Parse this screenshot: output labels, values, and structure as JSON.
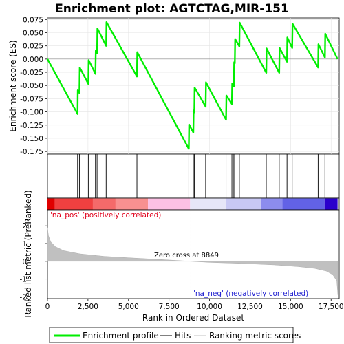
{
  "chart_data": {
    "type": "line",
    "title": "Enrichment plot: AGTCTAG,MIR-151",
    "top_panel": {
      "ylabel": "Enrichment score (ES)",
      "ylim": [
        -0.18,
        0.078
      ],
      "yticks": [
        0.075,
        0.05,
        0.025,
        0.0,
        -0.025,
        -0.05,
        -0.075,
        -0.1,
        -0.125,
        -0.15,
        -0.175
      ],
      "ytick_labels": [
        "0.075",
        "0.050",
        "0.025",
        "0.000",
        "-0.025",
        "-0.050",
        "-0.075",
        "-0.100",
        "-0.125",
        "-0.150",
        "-0.175"
      ],
      "series_name": "Enrichment profile",
      "line_color": "#00ee00",
      "es_points": [
        [
          0,
          0.0
        ],
        [
          1858,
          -0.104
        ],
        [
          1870,
          -0.059
        ],
        [
          1970,
          -0.064
        ],
        [
          1990,
          -0.016
        ],
        [
          2520,
          -0.047
        ],
        [
          2540,
          -0.002
        ],
        [
          2960,
          -0.028
        ],
        [
          2980,
          0.016
        ],
        [
          3060,
          0.011
        ],
        [
          3080,
          0.058
        ],
        [
          3620,
          0.025
        ],
        [
          3640,
          0.07
        ],
        [
          5520,
          -0.033
        ],
        [
          5540,
          0.013
        ],
        [
          8720,
          -0.17
        ],
        [
          8740,
          -0.124
        ],
        [
          9000,
          -0.139
        ],
        [
          9020,
          -0.097
        ],
        [
          9060,
          -0.101
        ],
        [
          9080,
          -0.054
        ],
        [
          9760,
          -0.09
        ],
        [
          9780,
          -0.044
        ],
        [
          11020,
          -0.115
        ],
        [
          11040,
          -0.069
        ],
        [
          11380,
          -0.085
        ],
        [
          11400,
          -0.046
        ],
        [
          11500,
          -0.052
        ],
        [
          11520,
          -0.006
        ],
        [
          11560,
          -0.008
        ],
        [
          11580,
          0.038
        ],
        [
          11840,
          0.024
        ],
        [
          11860,
          0.069
        ],
        [
          13500,
          -0.026
        ],
        [
          13520,
          0.02
        ],
        [
          14300,
          -0.026
        ],
        [
          14320,
          0.021
        ],
        [
          14780,
          -0.005
        ],
        [
          14800,
          0.041
        ],
        [
          15100,
          0.021
        ],
        [
          15120,
          0.067
        ],
        [
          16700,
          -0.016
        ],
        [
          16720,
          0.028
        ],
        [
          17120,
          0.003
        ],
        [
          17140,
          0.048
        ],
        [
          17900,
          0.0
        ]
      ]
    },
    "hits": {
      "series_name": "Hits",
      "positions": [
        1858,
        1970,
        2520,
        2960,
        3060,
        3620,
        5520,
        8720,
        9000,
        9060,
        9760,
        11020,
        11380,
        11500,
        11560,
        11840,
        13500,
        14300,
        14780,
        15100,
        16700,
        17120
      ]
    },
    "ranking_panel": {
      "series_name": "Ranking metric scores",
      "ylabel": "Ranked list metric (PreRanked)",
      "ylim": [
        -2.1,
        2.9
      ],
      "yticks": [
        2,
        1,
        0,
        -1,
        -2
      ],
      "ytick_labels": [
        "2",
        "1",
        "0",
        "-1",
        "-2"
      ],
      "zero_cross": 8849,
      "zero_cross_label": "Zero cross at 8849",
      "pos_label": "'na_pos' (positively correlated)",
      "neg_label": "'na_neg' (negatively correlated)",
      "metric_points": [
        [
          0,
          1.9
        ],
        [
          60,
          1.45
        ],
        [
          200,
          1.1
        ],
        [
          500,
          0.82
        ],
        [
          1000,
          0.6
        ],
        [
          2000,
          0.42
        ],
        [
          3500,
          0.28
        ],
        [
          5000,
          0.2
        ],
        [
          7000,
          0.1
        ],
        [
          8849,
          0.0
        ],
        [
          10000,
          -0.06
        ],
        [
          12000,
          -0.12
        ],
        [
          14000,
          -0.2
        ],
        [
          15500,
          -0.3
        ],
        [
          16500,
          -0.4
        ],
        [
          17200,
          -0.55
        ],
        [
          17600,
          -0.75
        ],
        [
          17850,
          -1.1
        ],
        [
          17920,
          -1.9
        ]
      ]
    },
    "xaxis": {
      "xlabel": "Rank in Ordered Dataset",
      "xlim": [
        0,
        18000
      ],
      "xticks": [
        0,
        2500,
        5000,
        7500,
        10000,
        12500,
        15000,
        17500
      ],
      "xtick_labels": [
        "0",
        "2,500",
        "5,000",
        "7,500",
        "10,000",
        "12,500",
        "15,000",
        "17,500"
      ],
      "n_genes": 17900
    },
    "colorbar": {
      "segments": [
        {
          "start": 0,
          "end": 450,
          "color": "#e00000"
        },
        {
          "start": 450,
          "end": 2800,
          "color": "#f04040"
        },
        {
          "start": 2800,
          "end": 4200,
          "color": "#f46a6a"
        },
        {
          "start": 4200,
          "end": 6200,
          "color": "#f89090"
        },
        {
          "start": 6200,
          "end": 8800,
          "color": "#fcc0e4"
        },
        {
          "start": 8800,
          "end": 11000,
          "color": "#e6e6f8"
        },
        {
          "start": 11000,
          "end": 13200,
          "color": "#c8c8f4"
        },
        {
          "start": 13200,
          "end": 14500,
          "color": "#8c8cee"
        },
        {
          "start": 14500,
          "end": 17100,
          "color": "#6262e6"
        },
        {
          "start": 17100,
          "end": 17900,
          "color": "#2a00cc"
        }
      ]
    },
    "legend": [
      {
        "label": "Enrichment profile",
        "color": "#00ee00",
        "kind": "thick-line"
      },
      {
        "label": "Hits",
        "color": "#000000",
        "kind": "line"
      },
      {
        "label": "Ranking metric scores",
        "color": "#c0c0c0",
        "kind": "line"
      }
    ]
  }
}
